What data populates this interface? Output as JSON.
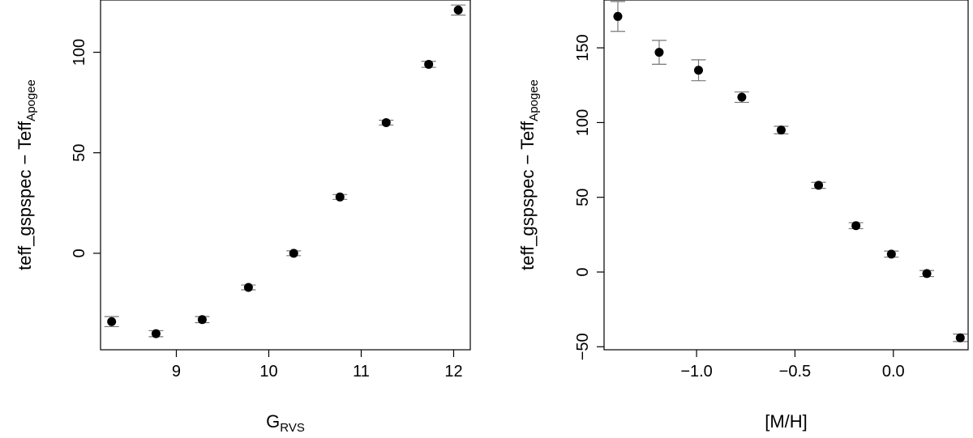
{
  "chart_data": [
    {
      "type": "scatter",
      "error_bars": true,
      "xlabel": "G",
      "xlabel_sub": "RVS",
      "ylabel": "teff_gspspec − Teff",
      "ylabel_sub": "Apogee",
      "xlim": [
        8.18,
        12.18
      ],
      "ylim": [
        -48,
        126
      ],
      "xticks": [
        9,
        10,
        11,
        12
      ],
      "xtick_labels": [
        "9",
        "10",
        "11",
        "12"
      ],
      "yticks": [
        0,
        50,
        100
      ],
      "ytick_labels": [
        "0",
        "50",
        "100"
      ],
      "grid": false,
      "points": [
        {
          "x": 8.3,
          "y": -34,
          "err": 2.5
        },
        {
          "x": 8.78,
          "y": -40,
          "err": 1.5
        },
        {
          "x": 9.28,
          "y": -33,
          "err": 1.5
        },
        {
          "x": 9.78,
          "y": -17,
          "err": 1.2
        },
        {
          "x": 10.27,
          "y": 0,
          "err": 1.2
        },
        {
          "x": 10.77,
          "y": 28,
          "err": 1.2
        },
        {
          "x": 11.27,
          "y": 65,
          "err": 1.2
        },
        {
          "x": 11.73,
          "y": 94,
          "err": 1.5
        },
        {
          "x": 12.05,
          "y": 121,
          "err": 2.5
        }
      ]
    },
    {
      "type": "scatter",
      "error_bars": true,
      "xlabel": "[M/H]",
      "xlabel_sub": "",
      "ylabel": "teff_gspspec − Teff",
      "ylabel_sub": "Apogee",
      "xlim": [
        -1.47,
        0.38
      ],
      "ylim": [
        -52,
        182
      ],
      "xticks": [
        -1.0,
        -0.5,
        0.0
      ],
      "xtick_labels": [
        "−1.0",
        "−0.5",
        "0.0"
      ],
      "yticks": [
        -50,
        0,
        50,
        100,
        150
      ],
      "ytick_labels": [
        "−50",
        "0",
        "50",
        "100",
        "150"
      ],
      "grid": false,
      "points": [
        {
          "x": -1.4,
          "y": 171,
          "err": 10
        },
        {
          "x": -1.19,
          "y": 147,
          "err": 8
        },
        {
          "x": -0.99,
          "y": 135,
          "err": 7
        },
        {
          "x": -0.77,
          "y": 117,
          "err": 3.5
        },
        {
          "x": -0.57,
          "y": 95,
          "err": 2.5
        },
        {
          "x": -0.38,
          "y": 58,
          "err": 2
        },
        {
          "x": -0.19,
          "y": 31,
          "err": 2
        },
        {
          "x": -0.01,
          "y": 12,
          "err": 2
        },
        {
          "x": 0.17,
          "y": -1,
          "err": 2
        },
        {
          "x": 0.34,
          "y": -44,
          "err": 2.5
        }
      ]
    }
  ]
}
